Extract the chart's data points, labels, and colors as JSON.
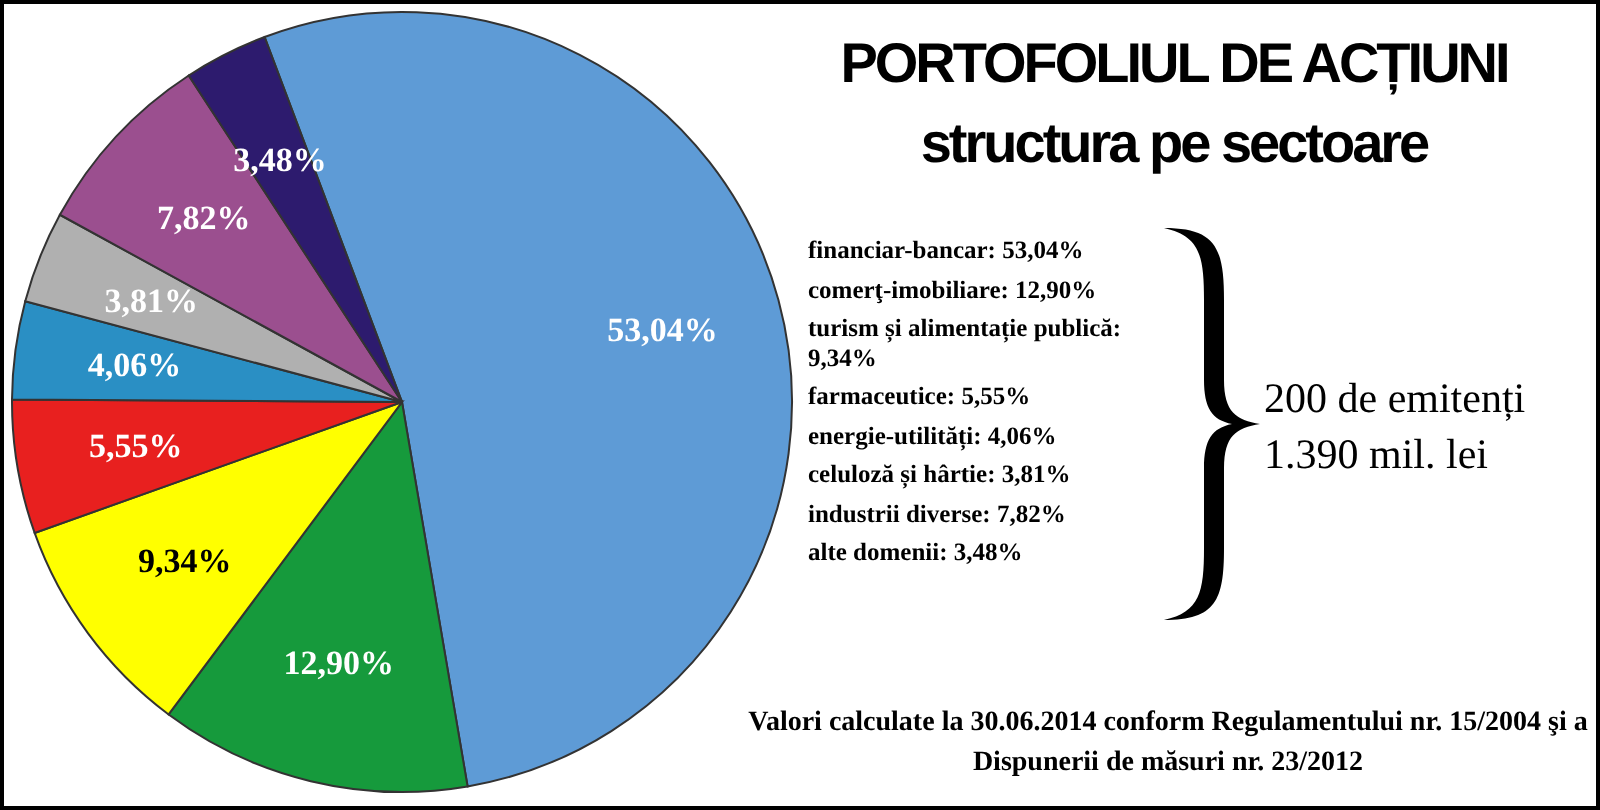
{
  "chart_data": {
    "type": "pie",
    "title": "PORTOFOLIUL DE ACȚIUNI",
    "subtitle": "structura pe sectoare",
    "categories": [
      null,
      null,
      null,
      null,
      null,
      null,
      null,
      null
    ],
    "values": [
      53.04,
      12.9,
      9.34,
      5.55,
      4.06,
      3.81,
      7.82,
      3.48
    ],
    "colors": [
      "#5e9bd6",
      "#169a3c",
      "#ffff00",
      "#e8201f",
      "#2a8fc4",
      "#b0b0b0",
      "#9b4f8f",
      "#2d1b6e"
    ],
    "value_labels": [
      "53,04%",
      "12,90%",
      "9,34%",
      "5,55%",
      "4,06%",
      "3,81%",
      "7,82%",
      "3,48%"
    ],
    "annotations": [
      "financiar-bancar: 53,04%",
      "comerţ-imobiliare: 12,90%",
      "turism și alimentație publică: 9,34%",
      "farmaceutice: 5,55%",
      "energie-utilități: 4,06%",
      "celuloză și hârtie: 3,81%",
      "industrii diverse: 7,82%",
      "alte domenii: 3,48%",
      "200 de emitenți",
      "1.390 mil. lei",
      "Valori calculate la 30.06.2014 conform Regulamentului nr. 15/2004 şi a Dispunerii de măsuri nr. 23/2012"
    ]
  }
}
